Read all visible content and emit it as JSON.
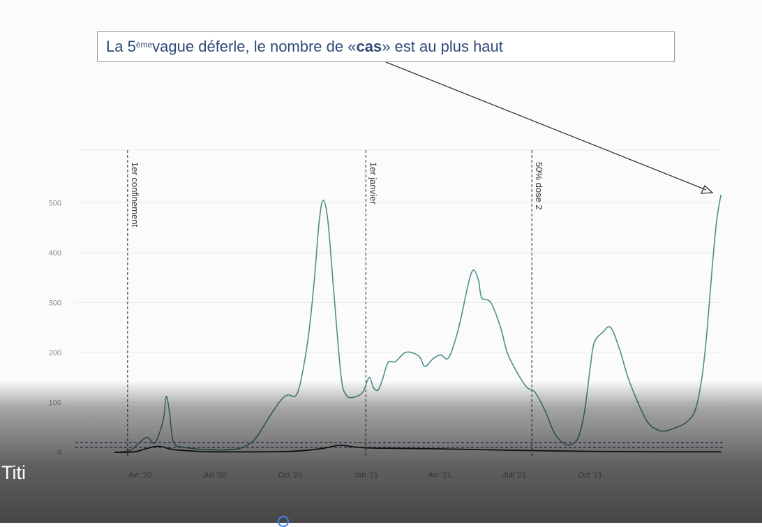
{
  "annotation": {
    "pre": "La 5",
    "sup": "ème",
    "mid": " vague déferle, le nombre de « ",
    "bold": "cas",
    "post": " » est  au plus haut"
  },
  "caption": "Titi",
  "colors": {
    "series": "#4e8f8a",
    "baseline": "#222222",
    "threshold": "#4a5a8a",
    "annotation_text": "#2f4a78"
  },
  "chart_data": {
    "type": "line",
    "title": "",
    "xlabel": "",
    "ylabel": "",
    "ylim": [
      0,
      560
    ],
    "y_ticks": [
      "0",
      "100",
      "200",
      "300",
      "400",
      "500"
    ],
    "x_ticks": [
      {
        "label": "Avr '20",
        "x": "2020-04-01"
      },
      {
        "label": "Juil '20",
        "x": "2020-07-01"
      },
      {
        "label": "Oct '20",
        "x": "2020-10-01"
      },
      {
        "label": "Jan '21",
        "x": "2021-01-01"
      },
      {
        "label": "Avr '21",
        "x": "2021-04-01"
      },
      {
        "label": "Juil '21",
        "x": "2021-07-01"
      },
      {
        "label": "Oct '21",
        "x": "2021-10-01"
      }
    ],
    "vlines": [
      {
        "x": "2020-03-17",
        "label": "1er confinement"
      },
      {
        "x": "2021-01-01",
        "label": "1er janvier"
      },
      {
        "x": "2021-07-22",
        "label": "50% dose 2"
      }
    ],
    "thresholds": [
      10,
      20
    ],
    "series": [
      {
        "style": "main",
        "points": [
          [
            "2020-03-01",
            0
          ],
          [
            "2020-03-20",
            4
          ],
          [
            "2020-04-01",
            20
          ],
          [
            "2020-04-10",
            30
          ],
          [
            "2020-04-18",
            18
          ],
          [
            "2020-04-24",
            35
          ],
          [
            "2020-04-30",
            70
          ],
          [
            "2020-05-03",
            112
          ],
          [
            "2020-05-07",
            80
          ],
          [
            "2020-05-12",
            20
          ],
          [
            "2020-05-25",
            10
          ],
          [
            "2020-06-15",
            6
          ],
          [
            "2020-07-01",
            5
          ],
          [
            "2020-07-15",
            5
          ],
          [
            "2020-08-01",
            8
          ],
          [
            "2020-08-15",
            20
          ],
          [
            "2020-08-25",
            40
          ],
          [
            "2020-09-05",
            70
          ],
          [
            "2020-09-20",
            105
          ],
          [
            "2020-09-28",
            115
          ],
          [
            "2020-10-10",
            120
          ],
          [
            "2020-10-22",
            220
          ],
          [
            "2020-10-30",
            340
          ],
          [
            "2020-11-05",
            460
          ],
          [
            "2020-11-10",
            505
          ],
          [
            "2020-11-16",
            460
          ],
          [
            "2020-11-24",
            300
          ],
          [
            "2020-12-02",
            150
          ],
          [
            "2020-12-08",
            115
          ],
          [
            "2020-12-16",
            110
          ],
          [
            "2020-12-28",
            120
          ],
          [
            "2021-01-05",
            150
          ],
          [
            "2021-01-10",
            130
          ],
          [
            "2021-01-16",
            125
          ],
          [
            "2021-01-22",
            150
          ],
          [
            "2021-01-28",
            180
          ],
          [
            "2021-02-06",
            182
          ],
          [
            "2021-02-18",
            200
          ],
          [
            "2021-03-01",
            198
          ],
          [
            "2021-03-08",
            190
          ],
          [
            "2021-03-14",
            172
          ],
          [
            "2021-03-24",
            188
          ],
          [
            "2021-04-02",
            195
          ],
          [
            "2021-04-12",
            190
          ],
          [
            "2021-04-24",
            250
          ],
          [
            "2021-05-06",
            340
          ],
          [
            "2021-05-12",
            365
          ],
          [
            "2021-05-18",
            345
          ],
          [
            "2021-05-22",
            310
          ],
          [
            "2021-06-02",
            300
          ],
          [
            "2021-06-14",
            250
          ],
          [
            "2021-06-22",
            200
          ],
          [
            "2021-07-04",
            160
          ],
          [
            "2021-07-16",
            130
          ],
          [
            "2021-07-26",
            120
          ],
          [
            "2021-08-08",
            80
          ],
          [
            "2021-08-18",
            40
          ],
          [
            "2021-08-28",
            20
          ],
          [
            "2021-09-06",
            15
          ],
          [
            "2021-09-16",
            28
          ],
          [
            "2021-09-24",
            80
          ],
          [
            "2021-10-01",
            170
          ],
          [
            "2021-10-06",
            220
          ],
          [
            "2021-10-16",
            240
          ],
          [
            "2021-10-26",
            250
          ],
          [
            "2021-11-06",
            205
          ],
          [
            "2021-11-16",
            150
          ],
          [
            "2021-11-28",
            100
          ],
          [
            "2021-12-10",
            60
          ],
          [
            "2021-12-22",
            45
          ],
          [
            "2022-01-01",
            43
          ],
          [
            "2022-01-14",
            50
          ],
          [
            "2022-01-26",
            60
          ],
          [
            "2022-02-06",
            85
          ],
          [
            "2022-02-14",
            150
          ],
          [
            "2022-02-20",
            240
          ],
          [
            "2022-02-27",
            380
          ],
          [
            "2022-03-04",
            465
          ],
          [
            "2022-03-09",
            515
          ]
        ]
      },
      {
        "style": "baseline",
        "points": [
          [
            "2020-03-01",
            0
          ],
          [
            "2020-03-25",
            1
          ],
          [
            "2020-04-10",
            8
          ],
          [
            "2020-04-24",
            12
          ],
          [
            "2020-05-10",
            6
          ],
          [
            "2020-06-01",
            3
          ],
          [
            "2020-07-01",
            1
          ],
          [
            "2020-10-01",
            2
          ],
          [
            "2020-11-10",
            8
          ],
          [
            "2020-12-01",
            14
          ],
          [
            "2021-01-01",
            9
          ],
          [
            "2021-04-01",
            7
          ],
          [
            "2021-07-01",
            4
          ],
          [
            "2021-10-01",
            2
          ],
          [
            "2022-01-01",
            1
          ],
          [
            "2022-03-09",
            1
          ]
        ]
      }
    ]
  }
}
